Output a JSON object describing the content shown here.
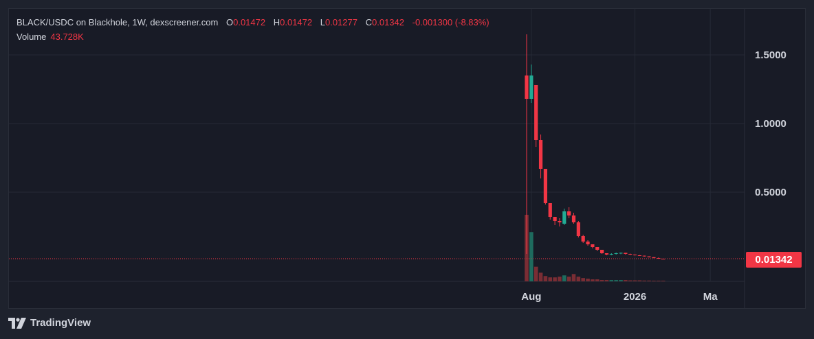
{
  "legend": {
    "symbol": "BLACK/USDC on Blackhole, 1W, dexscreener.com",
    "o_label": "O",
    "o_value": "0.01472",
    "h_label": "H",
    "h_value": "0.01472",
    "l_label": "L",
    "l_value": "0.01277",
    "c_label": "C",
    "c_value": "0.01342",
    "change": "-0.001300 (-8.83%)",
    "volume_label": "Volume",
    "volume_value": "43.728K"
  },
  "colors": {
    "up": "#22ab94",
    "down": "#f23645",
    "up_vol": "#1e6b5e",
    "down_vol": "#7a2d34",
    "grid": "#262a36"
  },
  "last_price_label": "0.01342",
  "brand": {
    "name": "TradingView",
    "icon": "tradingview-logo-icon"
  },
  "chart_data": {
    "type": "candlestick",
    "y_ticks": [
      "1.5000",
      "1.0000",
      "0.5000"
    ],
    "y_tick_values": [
      1.5,
      1.0,
      0.5
    ],
    "x_ticks": [
      {
        "label": "Aug",
        "index": 1
      },
      {
        "label": "2026",
        "index": 23
      },
      {
        "label": "Ma",
        "index": 39
      }
    ],
    "ylim": [
      -0.15,
      1.65
    ],
    "last_price": 0.01342,
    "candles": [
      {
        "o": 1.35,
        "h": 1.65,
        "l": 0.05,
        "c": 1.18
      },
      {
        "o": 1.18,
        "h": 1.43,
        "l": 1.15,
        "c": 1.35
      },
      {
        "o": 1.28,
        "h": 1.28,
        "l": 0.83,
        "c": 0.88
      },
      {
        "o": 0.88,
        "h": 0.92,
        "l": 0.6,
        "c": 0.67
      },
      {
        "o": 0.67,
        "h": 0.67,
        "l": 0.41,
        "c": 0.42
      },
      {
        "o": 0.42,
        "h": 0.42,
        "l": 0.3,
        "c": 0.32
      },
      {
        "o": 0.32,
        "h": 0.32,
        "l": 0.26,
        "c": 0.29
      },
      {
        "o": 0.29,
        "h": 0.31,
        "l": 0.25,
        "c": 0.28
      },
      {
        "o": 0.27,
        "h": 0.38,
        "l": 0.26,
        "c": 0.36
      },
      {
        "o": 0.36,
        "h": 0.39,
        "l": 0.31,
        "c": 0.33
      },
      {
        "o": 0.33,
        "h": 0.35,
        "l": 0.27,
        "c": 0.28
      },
      {
        "o": 0.28,
        "h": 0.29,
        "l": 0.17,
        "c": 0.18
      },
      {
        "o": 0.18,
        "h": 0.19,
        "l": 0.13,
        "c": 0.14
      },
      {
        "o": 0.14,
        "h": 0.15,
        "l": 0.11,
        "c": 0.12
      },
      {
        "o": 0.12,
        "h": 0.12,
        "l": 0.09,
        "c": 0.1
      },
      {
        "o": 0.1,
        "h": 0.1,
        "l": 0.07,
        "c": 0.08
      },
      {
        "o": 0.08,
        "h": 0.08,
        "l": 0.05,
        "c": 0.055
      },
      {
        "o": 0.055,
        "h": 0.055,
        "l": 0.04,
        "c": 0.045
      },
      {
        "o": 0.045,
        "h": 0.055,
        "l": 0.04,
        "c": 0.05
      },
      {
        "o": 0.05,
        "h": 0.06,
        "l": 0.045,
        "c": 0.055
      },
      {
        "o": 0.055,
        "h": 0.06,
        "l": 0.048,
        "c": 0.058
      },
      {
        "o": 0.058,
        "h": 0.058,
        "l": 0.045,
        "c": 0.05
      },
      {
        "o": 0.05,
        "h": 0.052,
        "l": 0.042,
        "c": 0.045
      },
      {
        "o": 0.045,
        "h": 0.047,
        "l": 0.038,
        "c": 0.04
      },
      {
        "o": 0.04,
        "h": 0.042,
        "l": 0.035,
        "c": 0.037
      },
      {
        "o": 0.037,
        "h": 0.038,
        "l": 0.03,
        "c": 0.032
      },
      {
        "o": 0.032,
        "h": 0.033,
        "l": 0.024,
        "c": 0.026
      },
      {
        "o": 0.026,
        "h": 0.027,
        "l": 0.018,
        "c": 0.02
      },
      {
        "o": 0.02,
        "h": 0.024,
        "l": 0.016,
        "c": 0.018
      },
      {
        "o": 0.01472,
        "h": 0.01472,
        "l": 0.01277,
        "c": 0.01342
      }
    ],
    "volumes": [
      100,
      74,
      22,
      13,
      8,
      6,
      6,
      7,
      9,
      7,
      11,
      7,
      5,
      4,
      3,
      3,
      2,
      2,
      2,
      2,
      2,
      2,
      1.5,
      1.5,
      1.5,
      1.2,
      1.2,
      1,
      1,
      0.8
    ]
  }
}
